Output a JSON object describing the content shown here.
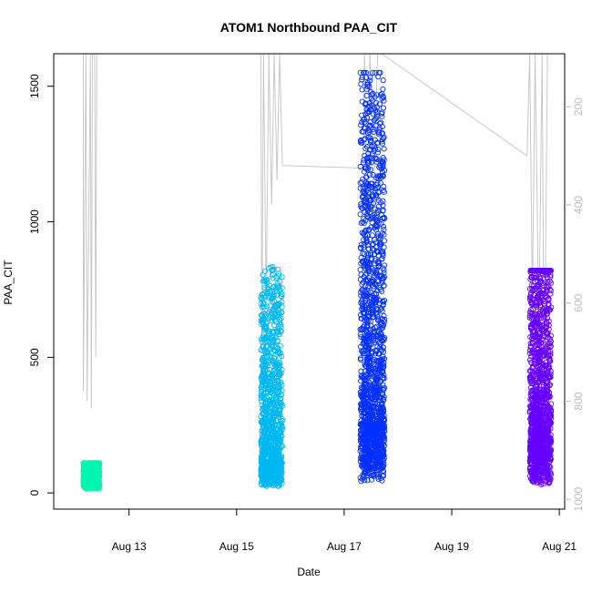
{
  "chart_data": {
    "type": "scatter",
    "title": "ATOM1 Northbound PAA_CIT",
    "xlabel": "Date",
    "ylabel": "PAA_CIT",
    "x_ticks": [
      "Aug 13",
      "Aug 15",
      "Aug 17",
      "Aug 19",
      "Aug 21"
    ],
    "x_tick_days": [
      13,
      15,
      17,
      19,
      21
    ],
    "xlim_days": [
      11.6,
      21.1
    ],
    "y_ticks": [
      0,
      500,
      1000,
      1500
    ],
    "ylim": [
      -60,
      1620
    ],
    "y2_ticks": [
      200,
      400,
      600,
      800,
      1000
    ],
    "y2lim": [
      92,
      1020
    ],
    "y2_inverted": true,
    "grid": false,
    "legend": "none",
    "colors": {
      "cluster1": "#00f5b0",
      "cluster2": "#00b8f0",
      "cluster3": "#0030ff",
      "cluster4": "#6600ff",
      "secondary_line": "#c8c8c8"
    },
    "series": [
      {
        "day_start": 12.15,
        "day_end": 12.45,
        "y_min": 10,
        "y_max": 110,
        "y_bias": 45,
        "color": "#00f5b0",
        "count": 700
      },
      {
        "day_start": 15.45,
        "day_end": 15.85,
        "y_min": 10,
        "y_max": 840,
        "y_bias": 130,
        "color": "#00b8f0",
        "count": 1100
      },
      {
        "day_start": 17.3,
        "day_end": 17.75,
        "y_min": 10,
        "y_max": 1550,
        "y_bias": 330,
        "color": "#0030ff",
        "count": 1500
      },
      {
        "day_start": 20.45,
        "day_end": 20.85,
        "y_min": 0,
        "y_max": 820,
        "y_bias": 290,
        "color": "#6600ff",
        "count": 1300
      }
    ],
    "secondary_series": [
      {
        "x": 12.15,
        "y": 92
      },
      {
        "x": 12.15,
        "y": 780
      },
      {
        "x": 12.2,
        "y": 92
      },
      {
        "x": 12.22,
        "y": 800
      },
      {
        "x": 12.28,
        "y": 92
      },
      {
        "x": 12.3,
        "y": 815
      },
      {
        "x": 12.32,
        "y": 92
      },
      {
        "x": 12.36,
        "y": 92
      },
      {
        "x": 12.38,
        "y": 710
      },
      {
        "x": 12.4,
        "y": 92
      },
      {
        "x": 15.45,
        "y": 92
      },
      {
        "x": 15.47,
        "y": 700
      },
      {
        "x": 15.5,
        "y": 92
      },
      {
        "x": 15.55,
        "y": 600
      },
      {
        "x": 15.6,
        "y": 92
      },
      {
        "x": 15.65,
        "y": 400
      },
      {
        "x": 15.7,
        "y": 92
      },
      {
        "x": 15.75,
        "y": 350
      },
      {
        "x": 15.8,
        "y": 92
      },
      {
        "x": 15.85,
        "y": 320
      },
      {
        "x": 17.35,
        "y": 325
      },
      {
        "x": 17.38,
        "y": 92
      },
      {
        "x": 17.42,
        "y": 420
      },
      {
        "x": 17.48,
        "y": 92
      },
      {
        "x": 17.55,
        "y": 400
      },
      {
        "x": 17.62,
        "y": 92
      },
      {
        "x": 17.7,
        "y": 92
      },
      {
        "x": 20.4,
        "y": 300
      },
      {
        "x": 20.45,
        "y": 92
      },
      {
        "x": 20.5,
        "y": 600
      },
      {
        "x": 20.55,
        "y": 92
      },
      {
        "x": 20.62,
        "y": 650
      },
      {
        "x": 20.68,
        "y": 92
      },
      {
        "x": 20.72,
        "y": 800
      },
      {
        "x": 20.78,
        "y": 92
      }
    ]
  }
}
